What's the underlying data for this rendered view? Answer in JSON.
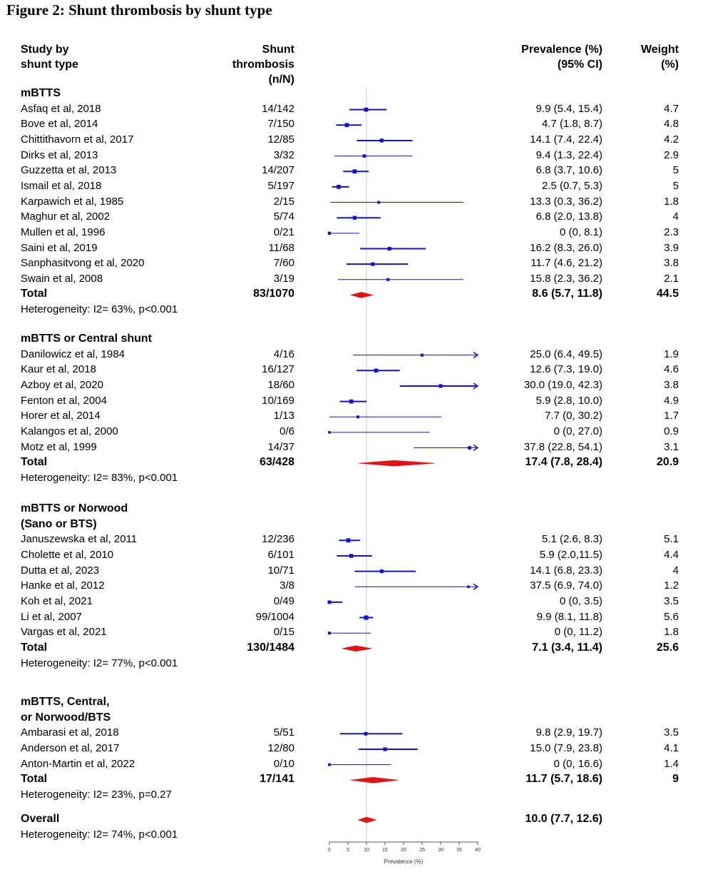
{
  "figure": {
    "title": "Figure 2: Shunt thrombosis by shunt type"
  },
  "columns": {
    "study_line1": "Study by",
    "study_line2": "shunt type",
    "events_line1": "Shunt",
    "events_line2": "thrombosis",
    "events_line3": "(n/N)",
    "prev_line1": "Prevalence (%)",
    "prev_line2": "(95% CI)",
    "weight_line1": "Weight",
    "weight_line2": "(%)"
  },
  "groups": [
    {
      "name": "mBTTS",
      "studies": [
        {
          "label": "Asfaq et al, 2018",
          "events": "14/142",
          "prev_text": "9.9 (5.4, 15.4)",
          "weight": "4.7",
          "est": 9.9,
          "lo": 5.4,
          "hi": 15.4,
          "w": 4.7
        },
        {
          "label": "Bove et al, 2014",
          "events": "7/150",
          "prev_text": "4.7 (1.8, 8.7)",
          "weight": "4.8",
          "est": 4.7,
          "lo": 1.8,
          "hi": 8.7,
          "w": 4.8
        },
        {
          "label": "Chittithavorn et al, 2017",
          "events": "12/85",
          "prev_text": "14.1 (7.4, 22.4)",
          "weight": "4.2",
          "est": 14.1,
          "lo": 7.4,
          "hi": 22.4,
          "w": 4.2
        },
        {
          "label": "Dirks et al, 2013",
          "events": "3/32",
          "prev_text": "9.4 (1.3, 22.4)",
          "weight": "2.9",
          "est": 9.4,
          "lo": 1.3,
          "hi": 22.4,
          "w": 2.9
        },
        {
          "label": "Guzzetta et al, 2013",
          "events": "14/207",
          "prev_text": "6.8 (3.7, 10.6)",
          "weight": "5",
          "est": 6.8,
          "lo": 3.7,
          "hi": 10.6,
          "w": 5
        },
        {
          "label": "Ismail et al, 2018",
          "events": "5/197",
          "prev_text": "2.5 (0.7, 5.3)",
          "weight": "5",
          "est": 2.5,
          "lo": 0.7,
          "hi": 5.3,
          "w": 5
        },
        {
          "label": "Karpawich et al, 1985",
          "events": "2/15",
          "prev_text": "13.3 (0.3, 36.2)",
          "weight": "1.8",
          "est": 13.3,
          "lo": 0.3,
          "hi": 36.2,
          "w": 1.8
        },
        {
          "label": "Maghur et al, 2002",
          "events": "5/74",
          "prev_text": "6.8 (2.0, 13.8)",
          "weight": "4",
          "est": 6.8,
          "lo": 2.0,
          "hi": 13.8,
          "w": 4
        },
        {
          "label": "Mullen et al, 1996",
          "events": "0/21",
          "prev_text": "0 (0, 8.1)",
          "weight": "2.3",
          "est": 0,
          "lo": 0,
          "hi": 8.1,
          "w": 2.3
        },
        {
          "label": "Saini et al, 2019",
          "events": "11/68",
          "prev_text": "16.2 (8.3, 26.0)",
          "weight": "3.9",
          "est": 16.2,
          "lo": 8.3,
          "hi": 26.0,
          "w": 3.9
        },
        {
          "label": "Sanphasitvong et al, 2020",
          "events": "7/60",
          "prev_text": "11.7 (4.6, 21.2)",
          "weight": "3.8",
          "est": 11.7,
          "lo": 4.6,
          "hi": 21.2,
          "w": 3.8
        },
        {
          "label": "Swain et al, 2008",
          "events": "3/19",
          "prev_text": "15.8 (2.3, 36.2)",
          "weight": "2.1",
          "est": 15.8,
          "lo": 2.3,
          "hi": 36.2,
          "w": 2.1
        }
      ],
      "total": {
        "label": "Total",
        "events": "83/1070",
        "prev_text": "8.6 (5.7, 11.8)",
        "weight": "44.5",
        "est": 8.6,
        "lo": 5.7,
        "hi": 11.8
      },
      "heterogeneity": "Heterogeneity: I2= 63%, p<0.001"
    },
    {
      "name": "mBTTS or Central shunt",
      "studies": [
        {
          "label": "Danilowicz et al, 1984",
          "events": "4/16",
          "prev_text": "25.0 (6.4, 49.5)",
          "weight": "1.9",
          "est": 25.0,
          "lo": 6.4,
          "hi": 49.5,
          "w": 1.9
        },
        {
          "label": "Kaur et al, 2018",
          "events": "16/127",
          "prev_text": "12.6 (7.3, 19.0)",
          "weight": "4.6",
          "est": 12.6,
          "lo": 7.3,
          "hi": 19.0,
          "w": 4.6
        },
        {
          "label": "Azboy et al, 2020",
          "events": "18/60",
          "prev_text": "30.0 (19.0, 42.3)",
          "weight": "3.8",
          "est": 30.0,
          "lo": 19.0,
          "hi": 42.3,
          "w": 3.8
        },
        {
          "label": "Fenton et al, 2004",
          "events": "10/169",
          "prev_text": "5.9 (2.8, 10.0)",
          "weight": "4.9",
          "est": 5.9,
          "lo": 2.8,
          "hi": 10.0,
          "w": 4.9
        },
        {
          "label": "Horer et al, 2014",
          "events": "1/13",
          "prev_text": "7.7 (0, 30.2)",
          "weight": "1.7",
          "est": 7.7,
          "lo": 0,
          "hi": 30.2,
          "w": 1.7
        },
        {
          "label": "Kalangos et al, 2000",
          "events": "0/6",
          "prev_text": "0 (0, 27.0)",
          "weight": "0.9",
          "est": 0,
          "lo": 0,
          "hi": 27.0,
          "w": 0.9
        },
        {
          "label": "Motz et al, 1999",
          "events": "14/37",
          "prev_text": "37.8 (22.8, 54.1)",
          "weight": "3.1",
          "est": 37.8,
          "lo": 22.8,
          "hi": 54.1,
          "w": 3.1
        }
      ],
      "total": {
        "label": "Total",
        "events": "63/428",
        "prev_text": "17.4 (7.8, 28.4)",
        "weight": "20.9",
        "est": 17.4,
        "lo": 7.8,
        "hi": 28.4
      },
      "heterogeneity": "Heterogeneity: I2= 83%, p<0.001"
    },
    {
      "name": "mBTTS or Norwood",
      "name_line2": "(Sano or BTS)",
      "studies": [
        {
          "label": "Januszewska et al, 2011",
          "events": "12/236",
          "prev_text": "5.1 (2.6, 8.3)",
          "weight": "5.1",
          "est": 5.1,
          "lo": 2.6,
          "hi": 8.3,
          "w": 5.1
        },
        {
          "label": "Cholette et al, 2010",
          "events": "6/101",
          "prev_text": "5.9 (2.0,11.5)",
          "weight": "4.4",
          "est": 5.9,
          "lo": 2.0,
          "hi": 11.5,
          "w": 4.4
        },
        {
          "label": "Dutta et al, 2023",
          "events": "10/71",
          "prev_text": "14.1 (6.8, 23.3)",
          "weight": "4",
          "est": 14.1,
          "lo": 6.8,
          "hi": 23.3,
          "w": 4
        },
        {
          "label": "Hanke et al, 2012",
          "events": "3/8",
          "prev_text": "37.5 (6.9, 74.0)",
          "weight": "1.2",
          "est": 37.5,
          "lo": 6.9,
          "hi": 74.0,
          "w": 1.2
        },
        {
          "label": "Koh et al, 2021",
          "events": "0/49",
          "prev_text": "0 (0, 3.5)",
          "weight": "3.5",
          "est": 0,
          "lo": 0,
          "hi": 3.5,
          "w": 3.5
        },
        {
          "label": "Li et al, 2007",
          "events": "99/1004",
          "prev_text": "9.9 (8.1, 11.8)",
          "weight": "5.6",
          "est": 9.9,
          "lo": 8.1,
          "hi": 11.8,
          "w": 5.6
        },
        {
          "label": "Vargas et al, 2021",
          "events": "0/15",
          "prev_text": "0 (0, 11.2)",
          "weight": "1.8",
          "est": 0,
          "lo": 0,
          "hi": 11.2,
          "w": 1.8
        }
      ],
      "total": {
        "label": "Total",
        "events": "130/1484",
        "prev_text": "7.1 (3.4, 11.4)",
        "weight": "25.6",
        "est": 7.1,
        "lo": 3.4,
        "hi": 11.4
      },
      "heterogeneity": "Heterogeneity: I2= 77%, p<0.001"
    },
    {
      "name": "mBTTS, Central,",
      "name_line2": "or Norwood/BTS",
      "studies": [
        {
          "label": "Ambarasi et al, 2018",
          "events": "5/51",
          "prev_text": "9.8 (2.9, 19.7)",
          "weight": "3.5",
          "est": 9.8,
          "lo": 2.9,
          "hi": 19.7,
          "w": 3.5
        },
        {
          "label": "Anderson et al, 2017",
          "events": "12/80",
          "prev_text": "15.0 (7.9, 23.8)",
          "weight": "4.1",
          "est": 15.0,
          "lo": 7.9,
          "hi": 23.8,
          "w": 4.1
        },
        {
          "label": "Anton-Martin et al, 2022",
          "events": "0/10",
          "prev_text": "0 (0, 16.6)",
          "weight": "1.4",
          "est": 0,
          "lo": 0,
          "hi": 16.6,
          "w": 1.4
        }
      ],
      "total": {
        "label": "Total",
        "events": "17/141",
        "prev_text": "11.7 (5.7, 18.6)",
        "weight": "9",
        "est": 11.7,
        "lo": 5.7,
        "hi": 18.6
      },
      "heterogeneity": "Heterogeneity: I2= 23%, p=0.27"
    }
  ],
  "overall": {
    "label": "Overall",
    "prev_text": "10.0 (7.7, 12.6)",
    "est": 10.0,
    "lo": 7.7,
    "hi": 12.6,
    "heterogeneity": "Heterogeneity: I2= 74%, p<0.001"
  },
  "colors": {
    "study": "#1010d8",
    "pooled": "#e81010",
    "refline": "#c8c8c8",
    "axis": "#555555"
  },
  "chart_data": {
    "type": "scatter",
    "subtype": "forest plot",
    "title": "Figure 2: Shunt thrombosis by shunt type",
    "xlabel": "Prevalence (%)",
    "xlim": [
      0,
      40
    ],
    "xticks": [
      0,
      5,
      10,
      15,
      20,
      25,
      30,
      35,
      40
    ],
    "reference_value": 10.0
  }
}
